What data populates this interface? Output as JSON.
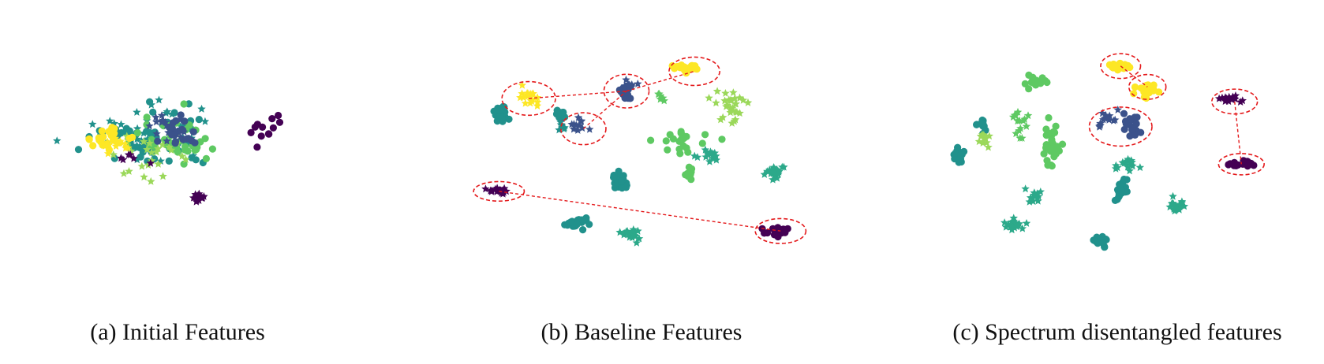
{
  "figure": {
    "colors": {
      "c0": "#440154",
      "c1": "#3b528b",
      "c2": "#21918c",
      "c3": "#2ca98a",
      "c4": "#5ec962",
      "c5": "#9bd85a",
      "c6": "#fde725"
    },
    "highlight_color": "#e41a1c"
  },
  "chart_data": [
    {
      "type": "scatter",
      "title": "(a) Initial Features",
      "markers": [
        "circle",
        "star"
      ],
      "clusters": [
        {
          "color": "c2",
          "marker": "circle",
          "cx": 0.42,
          "cy": 0.45,
          "sx": 0.16,
          "sy": 0.12,
          "n": 60
        },
        {
          "color": "c2",
          "marker": "star",
          "cx": 0.4,
          "cy": 0.42,
          "sx": 0.14,
          "sy": 0.14,
          "n": 40
        },
        {
          "color": "c4",
          "marker": "circle",
          "cx": 0.5,
          "cy": 0.44,
          "sx": 0.13,
          "sy": 0.1,
          "n": 40
        },
        {
          "color": "c5",
          "marker": "star",
          "cx": 0.42,
          "cy": 0.52,
          "sx": 0.12,
          "sy": 0.1,
          "n": 25
        },
        {
          "color": "c6",
          "marker": "circle",
          "cx": 0.3,
          "cy": 0.44,
          "sx": 0.06,
          "sy": 0.04,
          "n": 22
        },
        {
          "color": "c6",
          "marker": "star",
          "cx": 0.33,
          "cy": 0.46,
          "sx": 0.06,
          "sy": 0.05,
          "n": 12
        },
        {
          "color": "c1",
          "marker": "circle",
          "cx": 0.52,
          "cy": 0.4,
          "sx": 0.07,
          "sy": 0.06,
          "n": 22
        },
        {
          "color": "c1",
          "marker": "star",
          "cx": 0.48,
          "cy": 0.38,
          "sx": 0.06,
          "sy": 0.06,
          "n": 18
        },
        {
          "color": "c0",
          "marker": "circle",
          "cx": 0.78,
          "cy": 0.38,
          "sx": 0.05,
          "sy": 0.06,
          "n": 12
        },
        {
          "color": "c0",
          "marker": "star",
          "cx": 0.58,
          "cy": 0.72,
          "sx": 0.02,
          "sy": 0.02,
          "n": 14
        },
        {
          "color": "c0",
          "marker": "star",
          "cx": 0.38,
          "cy": 0.52,
          "sx": 0.05,
          "sy": 0.03,
          "n": 6
        }
      ]
    },
    {
      "type": "scatter",
      "title": "(b) Baseline Features",
      "markers": [
        "circle",
        "star"
      ],
      "clusters": [
        {
          "color": "c2",
          "marker": "circle",
          "cx": 0.07,
          "cy": 0.32,
          "sx": 0.018,
          "sy": 0.04,
          "n": 30
        },
        {
          "color": "c6",
          "marker": "star",
          "cx": 0.16,
          "cy": 0.24,
          "sx": 0.025,
          "sy": 0.035,
          "n": 20
        },
        {
          "color": "c6",
          "marker": "circle",
          "cx": 0.63,
          "cy": 0.1,
          "sx": 0.03,
          "sy": 0.02,
          "n": 22
        },
        {
          "color": "c1",
          "marker": "circle",
          "cx": 0.44,
          "cy": 0.22,
          "sx": 0.03,
          "sy": 0.03,
          "n": 14
        },
        {
          "color": "c1",
          "marker": "star",
          "cx": 0.46,
          "cy": 0.18,
          "sx": 0.025,
          "sy": 0.025,
          "n": 10
        },
        {
          "color": "c1",
          "marker": "star",
          "cx": 0.3,
          "cy": 0.38,
          "sx": 0.025,
          "sy": 0.03,
          "n": 14
        },
        {
          "color": "c2",
          "marker": "circle",
          "cx": 0.25,
          "cy": 0.32,
          "sx": 0.02,
          "sy": 0.02,
          "n": 10
        },
        {
          "color": "c2",
          "marker": "circle",
          "cx": 0.43,
          "cy": 0.64,
          "sx": 0.022,
          "sy": 0.04,
          "n": 26
        },
        {
          "color": "c2",
          "marker": "circle",
          "cx": 0.3,
          "cy": 0.84,
          "sx": 0.03,
          "sy": 0.025,
          "n": 26
        },
        {
          "color": "c3",
          "marker": "star",
          "cx": 0.46,
          "cy": 0.9,
          "sx": 0.03,
          "sy": 0.025,
          "n": 22
        },
        {
          "color": "c3",
          "marker": "star",
          "cx": 0.9,
          "cy": 0.6,
          "sx": 0.03,
          "sy": 0.03,
          "n": 22
        },
        {
          "color": "c5",
          "marker": "star",
          "cx": 0.76,
          "cy": 0.28,
          "sx": 0.05,
          "sy": 0.08,
          "n": 30
        },
        {
          "color": "c4",
          "marker": "circle",
          "cx": 0.62,
          "cy": 0.45,
          "sx": 0.08,
          "sy": 0.07,
          "n": 22
        },
        {
          "color": "c4",
          "marker": "circle",
          "cx": 0.64,
          "cy": 0.6,
          "sx": 0.02,
          "sy": 0.03,
          "n": 10
        },
        {
          "color": "c3",
          "marker": "star",
          "cx": 0.7,
          "cy": 0.52,
          "sx": 0.04,
          "sy": 0.03,
          "n": 14
        },
        {
          "color": "c4",
          "marker": "star",
          "cx": 0.55,
          "cy": 0.24,
          "sx": 0.01,
          "sy": 0.03,
          "n": 6
        },
        {
          "color": "c0",
          "marker": "star",
          "cx": 0.06,
          "cy": 0.69,
          "sx": 0.03,
          "sy": 0.015,
          "n": 18
        },
        {
          "color": "c0",
          "marker": "circle",
          "cx": 0.91,
          "cy": 0.88,
          "sx": 0.03,
          "sy": 0.02,
          "n": 20
        },
        {
          "color": "c2",
          "marker": "star",
          "cx": 0.25,
          "cy": 0.38,
          "sx": 0.02,
          "sy": 0.02,
          "n": 6
        }
      ],
      "highlights": [
        {
          "cx": 0.155,
          "cy": 0.245,
          "rx": 0.095,
          "ry": 0.095
        },
        {
          "cx": 0.655,
          "cy": 0.115,
          "rx": 0.09,
          "ry": 0.08
        },
        {
          "cx": 0.45,
          "cy": 0.21,
          "rx": 0.08,
          "ry": 0.095
        },
        {
          "cx": 0.32,
          "cy": 0.39,
          "rx": 0.08,
          "ry": 0.09
        },
        {
          "cx": 0.065,
          "cy": 0.69,
          "rx": 0.09,
          "ry": 0.055
        },
        {
          "cx": 0.915,
          "cy": 0.88,
          "rx": 0.09,
          "ry": 0.07
        }
      ],
      "links": [
        [
          0,
          2
        ],
        [
          2,
          1
        ],
        [
          3,
          2
        ],
        [
          4,
          5
        ]
      ]
    },
    {
      "type": "scatter",
      "title": "(c) Spectrum disentangled features",
      "markers": [
        "circle",
        "star"
      ],
      "clusters": [
        {
          "color": "c2",
          "marker": "circle",
          "cx": 0.05,
          "cy": 0.52,
          "sx": 0.02,
          "sy": 0.04,
          "n": 26
        },
        {
          "color": "c2",
          "marker": "circle",
          "cx": 0.12,
          "cy": 0.38,
          "sx": 0.018,
          "sy": 0.03,
          "n": 12
        },
        {
          "color": "c5",
          "marker": "star",
          "cx": 0.12,
          "cy": 0.43,
          "sx": 0.015,
          "sy": 0.035,
          "n": 12
        },
        {
          "color": "c4",
          "marker": "circle",
          "cx": 0.28,
          "cy": 0.17,
          "sx": 0.035,
          "sy": 0.03,
          "n": 18
        },
        {
          "color": "c4",
          "marker": "circle",
          "cx": 0.32,
          "cy": 0.45,
          "sx": 0.03,
          "sy": 0.12,
          "n": 30
        },
        {
          "color": "c4",
          "marker": "star",
          "cx": 0.23,
          "cy": 0.36,
          "sx": 0.02,
          "sy": 0.08,
          "n": 16
        },
        {
          "color": "c6",
          "marker": "circle",
          "cx": 0.53,
          "cy": 0.09,
          "sx": 0.025,
          "sy": 0.02,
          "n": 16
        },
        {
          "color": "c6",
          "marker": "circle",
          "cx": 0.61,
          "cy": 0.2,
          "sx": 0.035,
          "sy": 0.03,
          "n": 20
        },
        {
          "color": "c1",
          "marker": "circle",
          "cx": 0.56,
          "cy": 0.39,
          "sx": 0.035,
          "sy": 0.06,
          "n": 18
        },
        {
          "color": "c1",
          "marker": "star",
          "cx": 0.49,
          "cy": 0.34,
          "sx": 0.03,
          "sy": 0.04,
          "n": 14
        },
        {
          "color": "c3",
          "marker": "star",
          "cx": 0.55,
          "cy": 0.56,
          "sx": 0.035,
          "sy": 0.03,
          "n": 16
        },
        {
          "color": "c2",
          "marker": "circle",
          "cx": 0.53,
          "cy": 0.68,
          "sx": 0.02,
          "sy": 0.05,
          "n": 20
        },
        {
          "color": "c3",
          "marker": "star",
          "cx": 0.27,
          "cy": 0.7,
          "sx": 0.025,
          "sy": 0.05,
          "n": 14
        },
        {
          "color": "c3",
          "marker": "star",
          "cx": 0.22,
          "cy": 0.85,
          "sx": 0.025,
          "sy": 0.025,
          "n": 20
        },
        {
          "color": "c2",
          "marker": "circle",
          "cx": 0.47,
          "cy": 0.93,
          "sx": 0.025,
          "sy": 0.025,
          "n": 22
        },
        {
          "color": "c3",
          "marker": "star",
          "cx": 0.7,
          "cy": 0.76,
          "sx": 0.025,
          "sy": 0.025,
          "n": 20
        },
        {
          "color": "c0",
          "marker": "star",
          "cx": 0.86,
          "cy": 0.25,
          "sx": 0.03,
          "sy": 0.02,
          "n": 16
        },
        {
          "color": "c0",
          "marker": "circle",
          "cx": 0.89,
          "cy": 0.56,
          "sx": 0.03,
          "sy": 0.015,
          "n": 18
        }
      ],
      "highlights": [
        {
          "cx": 0.53,
          "cy": 0.09,
          "rx": 0.07,
          "ry": 0.07
        },
        {
          "cx": 0.61,
          "cy": 0.19,
          "rx": 0.065,
          "ry": 0.07
        },
        {
          "cx": 0.53,
          "cy": 0.38,
          "rx": 0.11,
          "ry": 0.11
        },
        {
          "cx": 0.87,
          "cy": 0.26,
          "rx": 0.08,
          "ry": 0.07
        },
        {
          "cx": 0.89,
          "cy": 0.56,
          "rx": 0.08,
          "ry": 0.06
        }
      ],
      "links": [
        [
          0,
          1
        ],
        [
          3,
          4
        ]
      ]
    }
  ]
}
